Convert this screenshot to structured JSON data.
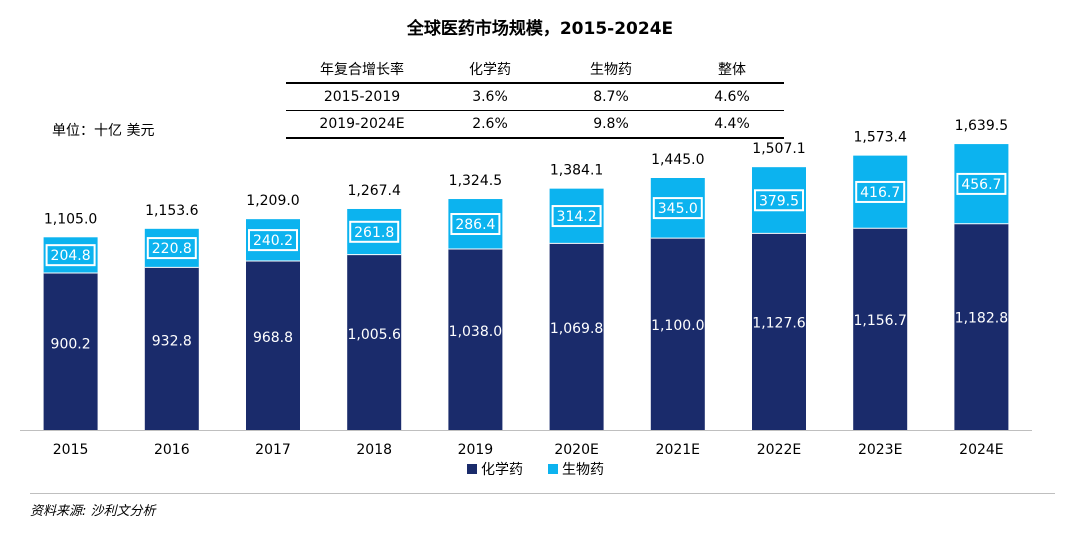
{
  "chart_data": {
    "type": "bar",
    "stacked": true,
    "title": "全球医药市场规模，2015-2024E",
    "unit_label": "单位：十亿 美元",
    "categories": [
      "2015",
      "2016",
      "2017",
      "2018",
      "2019",
      "2020E",
      "2021E",
      "2022E",
      "2023E",
      "2024E"
    ],
    "series": [
      {
        "name": "化学药",
        "color": "#1a2b6b",
        "values": [
          900.2,
          932.8,
          968.8,
          1005.6,
          1038.0,
          1069.8,
          1100.0,
          1127.6,
          1156.7,
          1182.8
        ],
        "labels": [
          "900.2",
          "932.8",
          "968.8",
          "1,005.6",
          "1,038.0",
          "1,069.8",
          "1,100.0",
          "1,127.6",
          "1,156.7",
          "1,182.8"
        ]
      },
      {
        "name": "生物药",
        "color": "#0cb3ef",
        "values": [
          204.8,
          220.8,
          240.2,
          261.8,
          286.4,
          314.2,
          345.0,
          379.5,
          416.7,
          456.7
        ],
        "labels": [
          "204.8",
          "220.8",
          "240.2",
          "261.8",
          "286.4",
          "314.2",
          "345.0",
          "379.5",
          "416.7",
          "456.7"
        ]
      }
    ],
    "totals": [
      1105.0,
      1153.6,
      1209.0,
      1267.4,
      1324.5,
      1384.1,
      1445.0,
      1507.1,
      1573.4,
      1639.5
    ],
    "total_labels": [
      "1,105.0",
      "1,153.6",
      "1,209.0",
      "1,267.4",
      "1,324.5",
      "1,384.1",
      "1,445.0",
      "1,507.1",
      "1,573.4",
      "1,639.5"
    ],
    "ylim": [
      0,
      1640
    ],
    "legend_position": "bottom-center",
    "cagr_table": {
      "headers": [
        "年复合增长率",
        "化学药",
        "生物药",
        "整体"
      ],
      "rows": [
        [
          "2015-2019",
          "3.6%",
          "8.7%",
          "4.6%"
        ],
        [
          "2019-2024E",
          "2.6%",
          "9.8%",
          "4.4%"
        ]
      ]
    }
  },
  "source": "资料来源: 沙利文分析"
}
